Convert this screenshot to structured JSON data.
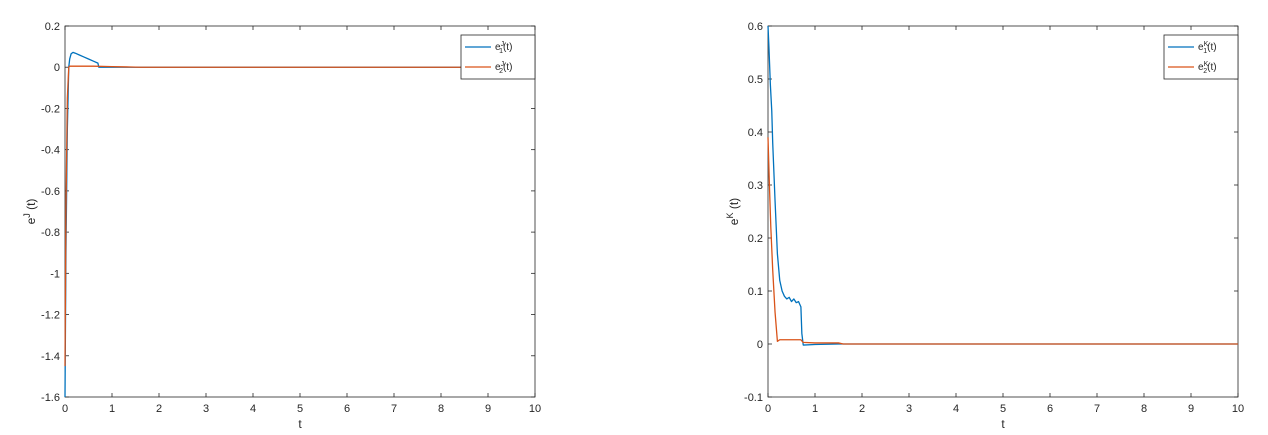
{
  "chart_data": [
    {
      "type": "line",
      "xlabel": "t",
      "ylabel_base": "e",
      "ylabel_sup": "J",
      "ylabel_tail": "(t)",
      "xlim": [
        0,
        10
      ],
      "ylim": [
        -1.6,
        0.2
      ],
      "xticks": [
        0,
        1,
        2,
        3,
        4,
        5,
        6,
        7,
        8,
        9,
        10
      ],
      "yticks": [
        -1.6,
        -1.4,
        -1.2,
        -1,
        -0.8,
        -0.6,
        -0.4,
        -0.2,
        0,
        0.2
      ],
      "grid": false,
      "legend": "top-right",
      "series": [
        {
          "name_base": "e",
          "name_sup": "J",
          "name_sub": "1",
          "name_tail": "(t)",
          "color": "#0072BD",
          "x": [
            0,
            0.02,
            0.05,
            0.08,
            0.1,
            0.13,
            0.17,
            0.22,
            0.3,
            0.4,
            0.5,
            0.6,
            0.7,
            0.72,
            1,
            2,
            3,
            4,
            5,
            6,
            7,
            8,
            9,
            10
          ],
          "y": [
            -1.6,
            -0.9,
            -0.3,
            0.0,
            0.04,
            0.065,
            0.072,
            0.068,
            0.06,
            0.05,
            0.04,
            0.03,
            0.02,
            0.0,
            0.0,
            0.0,
            0.0,
            0.0,
            0.0,
            0.0,
            0.0,
            0.0,
            0.0,
            0.0
          ]
        },
        {
          "name_base": "e",
          "name_sup": "J",
          "name_sub": "2",
          "name_tail": "(t)",
          "color": "#D95319",
          "x": [
            0,
            0.02,
            0.05,
            0.08,
            0.1,
            0.2,
            0.4,
            0.6,
            0.8,
            1,
            1.2,
            1.4,
            1.6,
            2,
            3,
            4,
            5,
            6,
            7,
            8,
            9,
            10
          ],
          "y": [
            -1.45,
            -0.7,
            -0.15,
            0.0,
            0.005,
            0.005,
            0.005,
            0.005,
            0.004,
            0.003,
            0.002,
            0.001,
            0.0,
            0.0,
            0.0,
            0.0,
            0.0,
            0.0,
            0.0,
            0.0,
            0.0,
            0.0
          ]
        }
      ]
    },
    {
      "type": "line",
      "xlabel": "t",
      "ylabel_base": "e",
      "ylabel_sup": "K",
      "ylabel_tail": "(t)",
      "xlim": [
        0,
        10
      ],
      "ylim": [
        -0.1,
        0.6
      ],
      "xticks": [
        0,
        1,
        2,
        3,
        4,
        5,
        6,
        7,
        8,
        9,
        10
      ],
      "yticks": [
        -0.1,
        0,
        0.1,
        0.2,
        0.3,
        0.4,
        0.5,
        0.6
      ],
      "grid": false,
      "legend": "top-right",
      "series": [
        {
          "name_base": "e",
          "name_sup": "K",
          "name_sub": "1",
          "name_tail": "(t)",
          "color": "#0072BD",
          "x": [
            0,
            0.02,
            0.05,
            0.08,
            0.1,
            0.15,
            0.2,
            0.25,
            0.3,
            0.35,
            0.4,
            0.45,
            0.5,
            0.55,
            0.6,
            0.65,
            0.7,
            0.72,
            0.75,
            1,
            1.5,
            2,
            3,
            4,
            5,
            6,
            7,
            8,
            9,
            10
          ],
          "y": [
            0.6,
            0.56,
            0.49,
            0.44,
            0.38,
            0.27,
            0.17,
            0.12,
            0.1,
            0.09,
            0.085,
            0.088,
            0.08,
            0.085,
            0.078,
            0.08,
            0.07,
            0.02,
            -0.002,
            -0.001,
            0.0,
            0.0,
            0.0,
            0.0,
            0.0,
            0.0,
            0.0,
            0.0,
            0.0,
            0.0
          ]
        },
        {
          "name_base": "e",
          "name_sup": "K",
          "name_sub": "2",
          "name_tail": "(t)",
          "color": "#D95319",
          "x": [
            0,
            0.03,
            0.06,
            0.1,
            0.15,
            0.2,
            0.25,
            0.3,
            0.5,
            0.7,
            0.75,
            1,
            1.5,
            1.6,
            2,
            3,
            4,
            5,
            6,
            7,
            8,
            9,
            10
          ],
          "y": [
            0.39,
            0.3,
            0.22,
            0.14,
            0.06,
            0.005,
            0.008,
            0.008,
            0.008,
            0.008,
            0.003,
            0.002,
            0.002,
            0.0,
            0.0,
            0.0,
            0.0,
            0.0,
            0.0,
            0.0,
            0.0,
            0.0,
            0.0
          ]
        }
      ]
    }
  ]
}
